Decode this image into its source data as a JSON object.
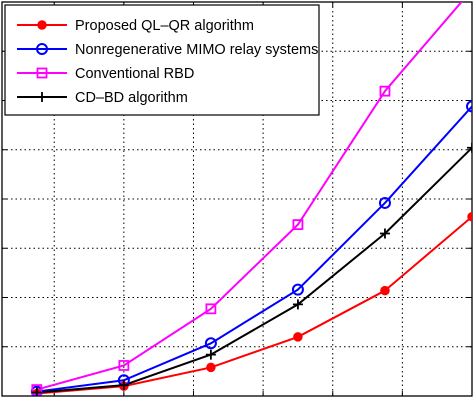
{
  "chart_data": {
    "type": "line",
    "x": [
      1,
      2,
      3,
      4,
      5,
      6
    ],
    "xlim": [
      0.6,
      6.0
    ],
    "ylim": [
      0,
      8
    ],
    "grid": true,
    "legend_position": "top-left",
    "series": [
      {
        "name": "Proposed QL–QR algorithm",
        "color": "#ff0000",
        "marker": "dot",
        "values": [
          0.05,
          0.2,
          0.58,
          1.2,
          2.14,
          3.64
        ]
      },
      {
        "name": "Nonregenerative MIMO relay systems",
        "color": "#0000ff",
        "marker": "circle",
        "values": [
          0.09,
          0.32,
          1.07,
          2.16,
          3.92,
          5.88
        ]
      },
      {
        "name": "Conventional RBD",
        "color": "#ff00ff",
        "marker": "square",
        "values": [
          0.13,
          0.62,
          1.77,
          3.48,
          6.19,
          8.25
        ]
      },
      {
        "name": "CD–BD algorithm",
        "color": "#000000",
        "marker": "plus",
        "values": [
          0.07,
          0.22,
          0.84,
          1.86,
          3.3,
          5.04
        ]
      }
    ]
  }
}
